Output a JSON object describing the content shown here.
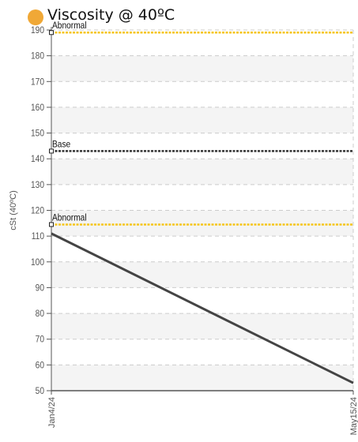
{
  "title": "Viscosity @ 40ºC",
  "colors": {
    "title_dot": "#f0a836",
    "threshold": "#f5c518",
    "base": "#333333",
    "series": "#444444",
    "band": "#f4f4f4",
    "grid": "#cccccc"
  },
  "chart_data": {
    "type": "line",
    "title": "Viscosity @ 40ºC",
    "ylabel": "cSt (40ºC)",
    "xlabel": "",
    "ylim": [
      50,
      190
    ],
    "yticks": [
      50,
      60,
      70,
      80,
      90,
      100,
      110,
      120,
      130,
      140,
      150,
      160,
      170,
      180,
      190
    ],
    "x_tick_labels": [
      "Jan4/24",
      "May15/24"
    ],
    "grid": true,
    "series": [
      {
        "x": [
          "Jan4/24",
          "May15/24"
        ],
        "values": [
          111,
          53
        ]
      }
    ],
    "reference_lines": [
      {
        "label": "Abnormal",
        "value": 189,
        "style": "dotted",
        "color": "#f5c518"
      },
      {
        "label": "Base",
        "value": 143,
        "style": "dotted",
        "color": "#333333"
      },
      {
        "label": "Abnormal",
        "value": 114.5,
        "style": "dotted",
        "color": "#f5c518"
      }
    ]
  }
}
